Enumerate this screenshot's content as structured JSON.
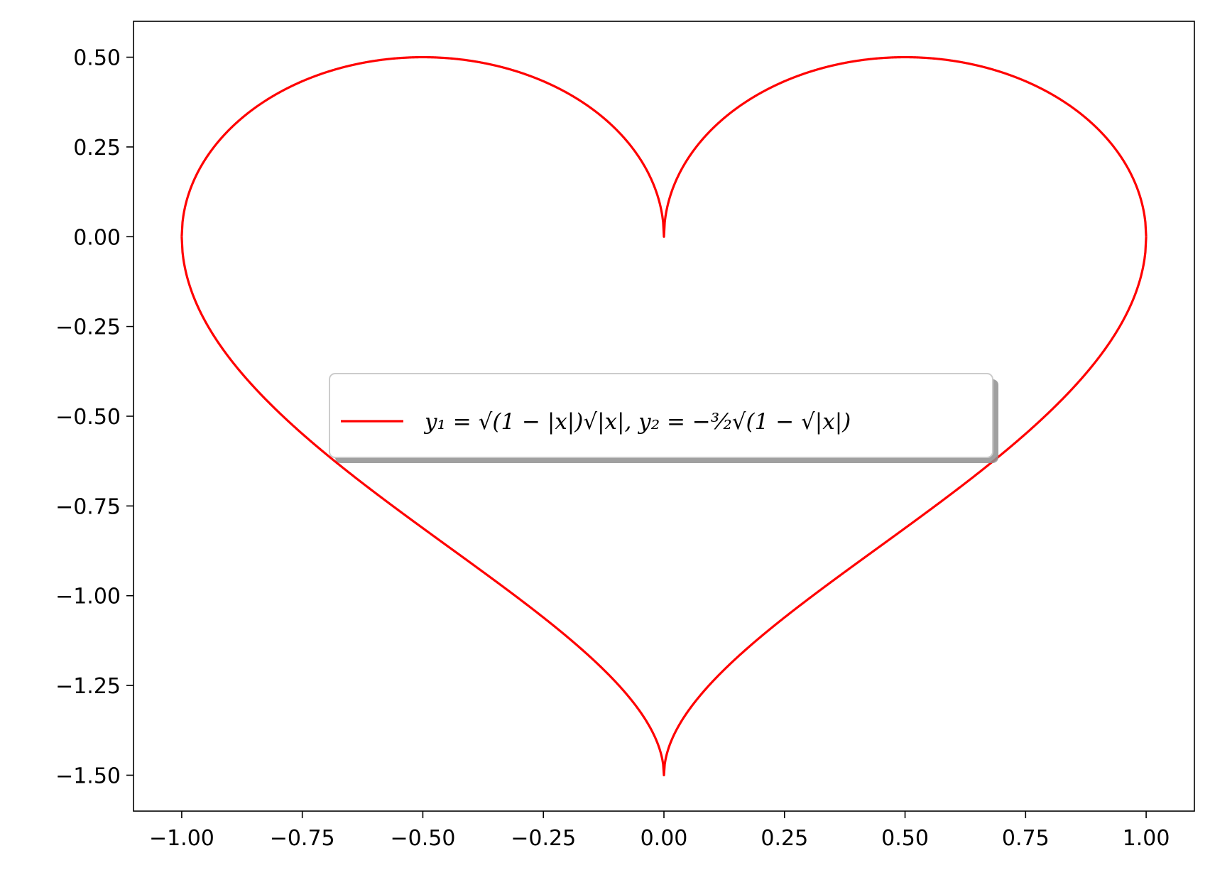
{
  "chart_data": {
    "type": "line",
    "title": "",
    "xlabel": "",
    "ylabel": "",
    "xlim": [
      -1.1,
      1.1
    ],
    "ylim": [
      -1.6,
      0.6
    ],
    "grid": false,
    "legend_placement": "center",
    "x_ticks": [
      -1.0,
      -0.75,
      -0.5,
      -0.25,
      0.0,
      0.25,
      0.5,
      0.75,
      1.0
    ],
    "x_tick_labels": [
      "−1.00",
      "−0.75",
      "−0.50",
      "−0.25",
      "0.00",
      "0.25",
      "0.50",
      "0.75",
      "1.00"
    ],
    "y_ticks": [
      0.5,
      0.25,
      0.0,
      -0.25,
      -0.5,
      -0.75,
      -1.0,
      -1.25,
      -1.5
    ],
    "y_tick_labels": [
      "0.50",
      "0.25",
      "0.00",
      "−0.25",
      "−0.50",
      "−0.75",
      "−1.00",
      "−1.25",
      "−1.50"
    ],
    "series": [
      {
        "name": "y₁ = √(1 − |x|)√|x|, y₂ = −³⁄₂√(1 − √|x|)",
        "color": "#ff0000",
        "x": [
          -1.0,
          -0.99,
          -0.95,
          -0.9,
          -0.8,
          -0.7,
          -0.6,
          -0.5,
          -0.4,
          -0.3,
          -0.2,
          -0.1,
          -0.05,
          -0.01,
          0.0,
          0.01,
          0.05,
          0.1,
          0.2,
          0.3,
          0.4,
          0.5,
          0.6,
          0.7,
          0.8,
          0.9,
          0.95,
          0.99,
          1.0
        ],
        "y_upper": [
          0.0,
          0.0995,
          0.2179,
          0.3,
          0.4,
          0.4583,
          0.4899,
          0.5,
          0.4899,
          0.4583,
          0.4,
          0.3,
          0.2179,
          0.0995,
          0.0,
          0.0995,
          0.2179,
          0.3,
          0.4,
          0.4583,
          0.4899,
          0.5,
          0.4899,
          0.4583,
          0.4,
          0.3,
          0.2179,
          0.0995,
          0.0
        ],
        "y_lower": [
          0.0,
          -0.1061,
          -0.2387,
          -0.341,
          -0.4905,
          -0.6071,
          -0.707,
          -0.7966,
          -0.8799,
          -0.9594,
          -1.0376,
          -1.1202,
          -1.1696,
          -1.2728,
          -1.5,
          -1.2728,
          -1.1696,
          -1.1202,
          -1.0376,
          -0.9594,
          -0.8799,
          -0.7966,
          -0.707,
          -0.6071,
          -0.4905,
          -0.341,
          -0.2387,
          -0.1061,
          0.0
        ]
      }
    ]
  }
}
